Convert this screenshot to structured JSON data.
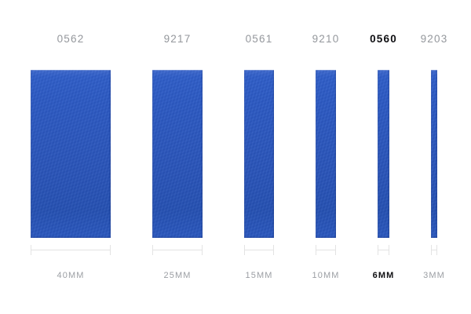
{
  "page": {
    "background": "#ffffff",
    "description": "Ribbon width comparison picker"
  },
  "colors": {
    "ribbon_blue": "#2a57c0",
    "ribbon_blue_light": "#3f6ace",
    "ribbon_blue_dark": "#2450b2",
    "label_gray": "#94979c",
    "label_selected": "#0f0f12",
    "dimension_line": "#e3e3e3"
  },
  "ribbons": [
    {
      "code": "0562",
      "width_label": "40MM",
      "width_mm": 40,
      "selected": false
    },
    {
      "code": "9217",
      "width_label": "25MM",
      "width_mm": 25,
      "selected": false
    },
    {
      "code": "0561",
      "width_label": "15MM",
      "width_mm": 15,
      "selected": false
    },
    {
      "code": "9210",
      "width_label": "10MM",
      "width_mm": 10,
      "selected": false
    },
    {
      "code": "0560",
      "width_label": "6MM",
      "width_mm": 6,
      "selected": true
    },
    {
      "code": "9203",
      "width_label": "3MM",
      "width_mm": 3,
      "selected": false
    }
  ]
}
